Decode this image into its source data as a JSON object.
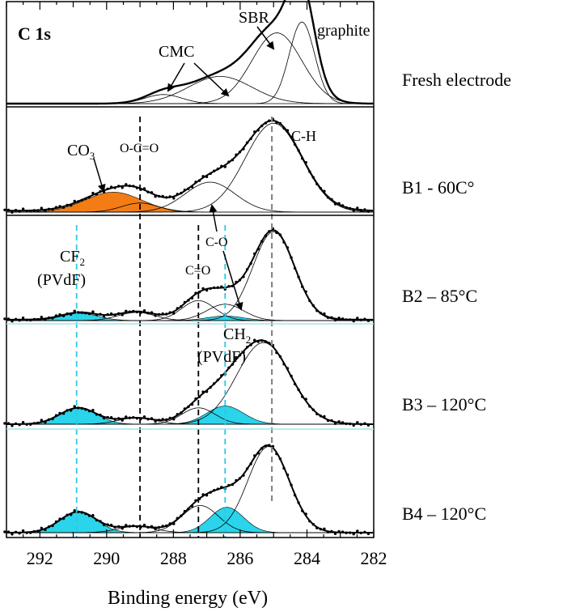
{
  "chart_data": {
    "type": "line",
    "panel_title": "C 1s",
    "xlabel": "Binding energy (eV)",
    "xlim": [
      293,
      282
    ],
    "x_reversed": true,
    "xticks": [
      292,
      290,
      288,
      286,
      284,
      282
    ],
    "panels": [
      {
        "name": "Fresh electrode",
        "components": [
          {
            "label": "CMC",
            "center": 288.3,
            "height": 0.1,
            "width": 0.55,
            "fill": "none"
          },
          {
            "label": "CMC",
            "center": 286.6,
            "height": 0.3,
            "width": 0.95,
            "fill": "none"
          },
          {
            "label": "SBR",
            "center": 284.9,
            "height": 0.78,
            "width": 0.75,
            "fill": "none"
          },
          {
            "label": "graphite",
            "center": 284.15,
            "height": 0.9,
            "width": 0.38,
            "fill": "none"
          }
        ]
      },
      {
        "name": "B1 - 60C°",
        "components": [
          {
            "label": "CO3",
            "center": 289.8,
            "height": 0.22,
            "width": 0.85,
            "fill": "#f47c14"
          },
          {
            "label": "O-C=O",
            "center": 289.0,
            "height": 0.1,
            "width": 0.55,
            "fill": "none"
          },
          {
            "label": "C-O",
            "center": 286.9,
            "height": 0.33,
            "width": 0.75,
            "fill": "none"
          },
          {
            "label": "C-H",
            "center": 285.0,
            "height": 0.98,
            "width": 0.85,
            "fill": "none"
          }
        ]
      },
      {
        "name": "B2 – 85°C",
        "components": [
          {
            "label": "CF2",
            "center": 290.8,
            "height": 0.08,
            "width": 0.55,
            "fill": "#2ad4ea"
          },
          {
            "label": "O-C=O",
            "center": 289.1,
            "height": 0.09,
            "width": 0.55,
            "fill": "none"
          },
          {
            "label": "C=O",
            "center": 287.25,
            "height": 0.22,
            "width": 0.5,
            "fill": "none"
          },
          {
            "label": "C-O",
            "center": 286.45,
            "height": 0.18,
            "width": 0.55,
            "fill": "none"
          },
          {
            "label": "CH2",
            "center": 286.45,
            "height": 0.05,
            "width": 0.55,
            "fill": "#2ad4ea"
          },
          {
            "label": "C-H",
            "center": 285.0,
            "height": 0.98,
            "width": 0.62,
            "fill": "none"
          }
        ]
      },
      {
        "name": "B3 – 120°C",
        "components": [
          {
            "label": "CF2",
            "center": 290.85,
            "height": 0.18,
            "width": 0.55,
            "fill": "#2ad4ea"
          },
          {
            "label": "O-C=O",
            "center": 289.1,
            "height": 0.07,
            "width": 0.55,
            "fill": "none"
          },
          {
            "label": "C=O",
            "center": 287.25,
            "height": 0.18,
            "width": 0.5,
            "fill": "none"
          },
          {
            "label": "CH2",
            "center": 286.45,
            "height": 0.2,
            "width": 0.55,
            "fill": "#2ad4ea"
          },
          {
            "label": "C-H",
            "center": 285.3,
            "height": 0.9,
            "width": 0.8,
            "fill": "none"
          }
        ]
      },
      {
        "name": "B4 – 120°C",
        "components": [
          {
            "label": "CF2",
            "center": 290.85,
            "height": 0.23,
            "width": 0.55,
            "fill": "#2ad4ea"
          },
          {
            "label": "O-C=O",
            "center": 289.1,
            "height": 0.07,
            "width": 0.55,
            "fill": "none"
          },
          {
            "label": "C=O",
            "center": 287.2,
            "height": 0.3,
            "width": 0.55,
            "fill": "none"
          },
          {
            "label": "CH2",
            "center": 286.4,
            "height": 0.28,
            "width": 0.5,
            "fill": "#2ad4ea"
          },
          {
            "label": "C-H",
            "center": 285.15,
            "height": 0.95,
            "width": 0.62,
            "fill": "none"
          }
        ]
      }
    ],
    "reference_lines": [
      {
        "x": 289.0,
        "color": "#000000",
        "from_panel": 1,
        "to_panel": 4
      },
      {
        "x": 287.25,
        "color": "#000000",
        "from_panel": 2,
        "to_panel": 4
      },
      {
        "x": 290.9,
        "color": "#2ac9e6",
        "from_panel": 2,
        "to_panel": 4
      },
      {
        "x": 286.45,
        "color": "#2ac9e6",
        "from_panel": 2,
        "to_panel": 4
      },
      {
        "x": 285.05,
        "color": "#888888",
        "from_panel": 1,
        "to_panel": 4
      }
    ],
    "annotations": {
      "sbr": "SBR",
      "graphite": "graphite",
      "cmc": "CMC",
      "co3_main": "CO",
      "co3_sub": "3",
      "oco": "O-C=O",
      "ch": "C-H",
      "co": "C-O",
      "ceqo": "C=O",
      "cf2_main": "CF",
      "cf2_sub": "2",
      "cf2_pvdf": "(PVdF)",
      "ch2_main": "CH",
      "ch2_sub": "2",
      "ch2_pvdf": "(PVdF)"
    },
    "colors": {
      "orange_fill": "#f47c14",
      "cyan_fill": "#2ad4ea",
      "cyan_dash": "#2ac9e6",
      "gray_dash": "#888888",
      "separator_cyan": "#9fe6ef"
    }
  }
}
